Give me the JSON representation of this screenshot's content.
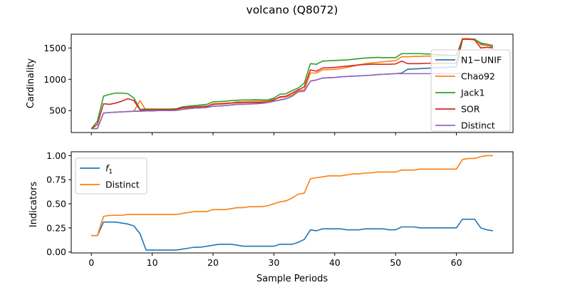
{
  "figure": {
    "title": "volcano (Q8072)",
    "xlabel": "Sample Periods"
  },
  "chart_data": [
    {
      "type": "line",
      "ylabel": "Cardinality",
      "xlim": [
        -3.3,
        69.3
      ],
      "ylim": [
        150,
        1720
      ],
      "xticks": [
        0,
        10,
        20,
        30,
        40,
        50,
        60
      ],
      "yticks": [
        500,
        1000,
        1500
      ],
      "legend_position": "right",
      "series": [
        {
          "name": "N1−UNIF",
          "color": "#1f77b4",
          "values": [
            210,
            215,
            460,
            470,
            475,
            480,
            485,
            490,
            490,
            495,
            495,
            500,
            500,
            500,
            505,
            520,
            530,
            540,
            545,
            550,
            570,
            575,
            580,
            590,
            600,
            600,
            605,
            610,
            615,
            630,
            650,
            670,
            690,
            730,
            800,
            810,
            970,
            990,
            1020,
            1025,
            1030,
            1040,
            1045,
            1050,
            1055,
            1060,
            1065,
            1075,
            1080,
            1085,
            1090,
            1100,
            1160,
            1165,
            1170,
            1175,
            1180,
            1185,
            1190,
            1195,
            1200,
            1640,
            1640,
            1640,
            1560,
            1540,
            1520
          ]
        },
        {
          "name": "Chao92",
          "color": "#ff7f0e",
          "values": [
            210,
            215,
            460,
            470,
            475,
            480,
            485,
            490,
            660,
            500,
            505,
            510,
            510,
            510,
            515,
            535,
            545,
            560,
            565,
            570,
            610,
            615,
            620,
            625,
            640,
            640,
            645,
            650,
            650,
            660,
            680,
            710,
            720,
            750,
            820,
            830,
            1100,
            1100,
            1150,
            1155,
            1160,
            1170,
            1190,
            1210,
            1230,
            1250,
            1260,
            1270,
            1280,
            1290,
            1295,
            1360,
            1360,
            1365,
            1365,
            1370,
            1370,
            1375,
            1375,
            1380,
            1380,
            1650,
            1650,
            1640,
            1550,
            1540,
            1530
          ]
        },
        {
          "name": "Jack1",
          "color": "#2ca02c",
          "values": [
            210,
            330,
            730,
            760,
            780,
            780,
            770,
            700,
            520,
            525,
            525,
            525,
            525,
            525,
            530,
            560,
            570,
            580,
            590,
            600,
            640,
            645,
            650,
            660,
            665,
            670,
            670,
            675,
            670,
            670,
            700,
            760,
            770,
            820,
            860,
            940,
            1250,
            1240,
            1290,
            1295,
            1300,
            1305,
            1310,
            1320,
            1330,
            1340,
            1345,
            1350,
            1345,
            1345,
            1345,
            1410,
            1410,
            1410,
            1410,
            1405,
            1400,
            1395,
            1390,
            1385,
            1380,
            1640,
            1640,
            1640,
            1580,
            1560,
            1540
          ]
        },
        {
          "name": "SOR",
          "color": "#d62728",
          "values": [
            210,
            280,
            610,
            600,
            620,
            650,
            690,
            660,
            510,
            510,
            515,
            515,
            515,
            515,
            520,
            550,
            555,
            560,
            565,
            570,
            600,
            605,
            610,
            620,
            625,
            625,
            630,
            630,
            630,
            640,
            670,
            720,
            730,
            780,
            830,
            880,
            1150,
            1130,
            1180,
            1185,
            1190,
            1200,
            1210,
            1220,
            1230,
            1235,
            1240,
            1240,
            1240,
            1240,
            1245,
            1290,
            1250,
            1250,
            1250,
            1255,
            1255,
            1255,
            1255,
            1255,
            1255,
            1640,
            1640,
            1630,
            1500,
            1510,
            1500
          ]
        },
        {
          "name": "Distinct",
          "color": "#9467bd",
          "values": [
            210,
            215,
            460,
            470,
            475,
            480,
            485,
            490,
            490,
            495,
            495,
            500,
            500,
            500,
            505,
            520,
            530,
            540,
            545,
            550,
            570,
            575,
            580,
            590,
            600,
            600,
            605,
            610,
            615,
            630,
            650,
            670,
            690,
            730,
            800,
            810,
            970,
            990,
            1020,
            1025,
            1030,
            1040,
            1045,
            1050,
            1055,
            1060,
            1065,
            1075,
            1080,
            1085,
            1090,
            1090,
            1090,
            1090,
            1090,
            1090,
            1090,
            1090,
            1090,
            1090,
            1090,
            1090,
            1090,
            1090,
            1090,
            1090,
            1090
          ]
        }
      ]
    },
    {
      "type": "line",
      "ylabel": "Indicators",
      "xlim": [
        -3.3,
        69.3
      ],
      "ylim": [
        -0.01,
        1.04
      ],
      "xticks": [
        0,
        10,
        20,
        30,
        40,
        50,
        60
      ],
      "yticks": [
        0.0,
        0.25,
        0.5,
        0.75,
        1.0
      ],
      "ytick_labels": [
        "0.00",
        "0.25",
        "0.50",
        "0.75",
        "1.00"
      ],
      "legend_position": "upper left",
      "series": [
        {
          "name": "f",
          "name_subscript": "1",
          "color": "#1f77b4",
          "values": [
            0.17,
            0.17,
            0.31,
            0.31,
            0.31,
            0.3,
            0.29,
            0.27,
            0.19,
            0.02,
            0.02,
            0.02,
            0.02,
            0.02,
            0.02,
            0.03,
            0.04,
            0.05,
            0.05,
            0.06,
            0.07,
            0.08,
            0.08,
            0.08,
            0.07,
            0.06,
            0.06,
            0.06,
            0.06,
            0.06,
            0.06,
            0.08,
            0.08,
            0.08,
            0.1,
            0.13,
            0.23,
            0.22,
            0.24,
            0.24,
            0.24,
            0.24,
            0.23,
            0.23,
            0.23,
            0.24,
            0.24,
            0.24,
            0.24,
            0.23,
            0.23,
            0.26,
            0.26,
            0.26,
            0.25,
            0.25,
            0.25,
            0.25,
            0.25,
            0.25,
            0.25,
            0.34,
            0.34,
            0.34,
            0.25,
            0.23,
            0.22
          ]
        },
        {
          "name": "Distinct",
          "color": "#ff7f0e",
          "values": [
            0.17,
            0.17,
            0.37,
            0.38,
            0.38,
            0.38,
            0.39,
            0.39,
            0.39,
            0.39,
            0.39,
            0.39,
            0.39,
            0.39,
            0.39,
            0.4,
            0.41,
            0.42,
            0.42,
            0.42,
            0.44,
            0.44,
            0.44,
            0.45,
            0.46,
            0.46,
            0.47,
            0.47,
            0.47,
            0.48,
            0.5,
            0.52,
            0.53,
            0.56,
            0.6,
            0.61,
            0.76,
            0.77,
            0.78,
            0.79,
            0.79,
            0.79,
            0.8,
            0.81,
            0.81,
            0.82,
            0.82,
            0.83,
            0.83,
            0.83,
            0.83,
            0.85,
            0.85,
            0.85,
            0.86,
            0.86,
            0.86,
            0.86,
            0.86,
            0.86,
            0.86,
            0.96,
            0.97,
            0.97,
            0.99,
            1.0,
            1.0
          ]
        }
      ]
    }
  ]
}
